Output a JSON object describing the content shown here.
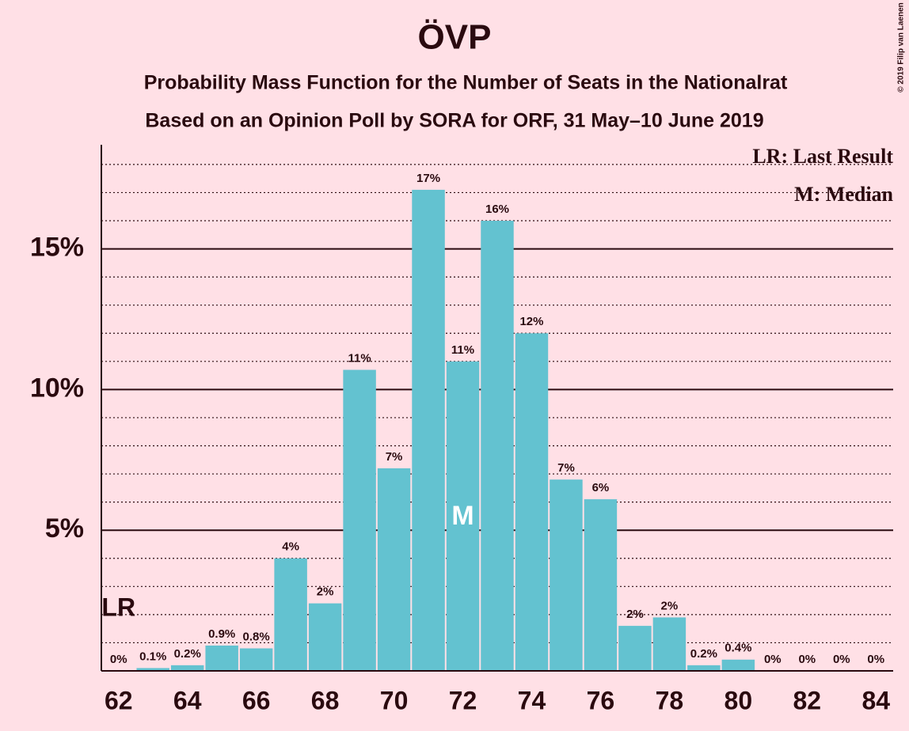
{
  "chart_data": {
    "type": "bar",
    "title": "ÖVP",
    "subtitles": [
      "Probability Mass Function for the Number of Seats in the Nationalrat",
      "Based on an Opinion Poll by SORA for ORF, 31 May–10 June 2019"
    ],
    "credit": "© 2019 Filip van Laenen",
    "x": [
      62,
      63,
      64,
      65,
      66,
      67,
      68,
      69,
      70,
      71,
      72,
      73,
      74,
      75,
      76,
      77,
      78,
      79,
      80,
      81,
      82,
      83,
      84
    ],
    "values": [
      0,
      0.1,
      0.2,
      0.9,
      0.8,
      4.0,
      2.4,
      10.7,
      7.2,
      17.1,
      11.0,
      16.0,
      12.0,
      6.8,
      6.1,
      1.6,
      1.9,
      0.2,
      0.4,
      0,
      0,
      0,
      0
    ],
    "value_labels": [
      "0%",
      "0.1%",
      "0.2%",
      "0.9%",
      "0.8%",
      "4%",
      "2%",
      "11%",
      "7%",
      "17%",
      "11%",
      "16%",
      "12%",
      "7%",
      "6%",
      "2%",
      "2%",
      "0.2%",
      "0.4%",
      "0%",
      "0%",
      "0%",
      "0%"
    ],
    "color": "#63c2d0",
    "xlim": [
      61.5,
      84.5
    ],
    "xticks": [
      62,
      64,
      66,
      68,
      70,
      72,
      74,
      76,
      78,
      80,
      82,
      84
    ],
    "ylim": [
      0,
      18.7
    ],
    "yticks": [
      {
        "value": 5,
        "label": "5%"
      },
      {
        "value": 10,
        "label": "10%"
      },
      {
        "value": 15,
        "label": "15%"
      }
    ],
    "minor_yticks": [
      1,
      2,
      3,
      4,
      6,
      7,
      8,
      9,
      11,
      12,
      13,
      14,
      16,
      17,
      18
    ],
    "grid": true,
    "last_result": {
      "x": 62,
      "label": "LR"
    },
    "median": {
      "x": 72,
      "label": "M"
    },
    "legend": [
      "LR: Last Result",
      "M: Median"
    ],
    "legend_position": "top-right"
  }
}
